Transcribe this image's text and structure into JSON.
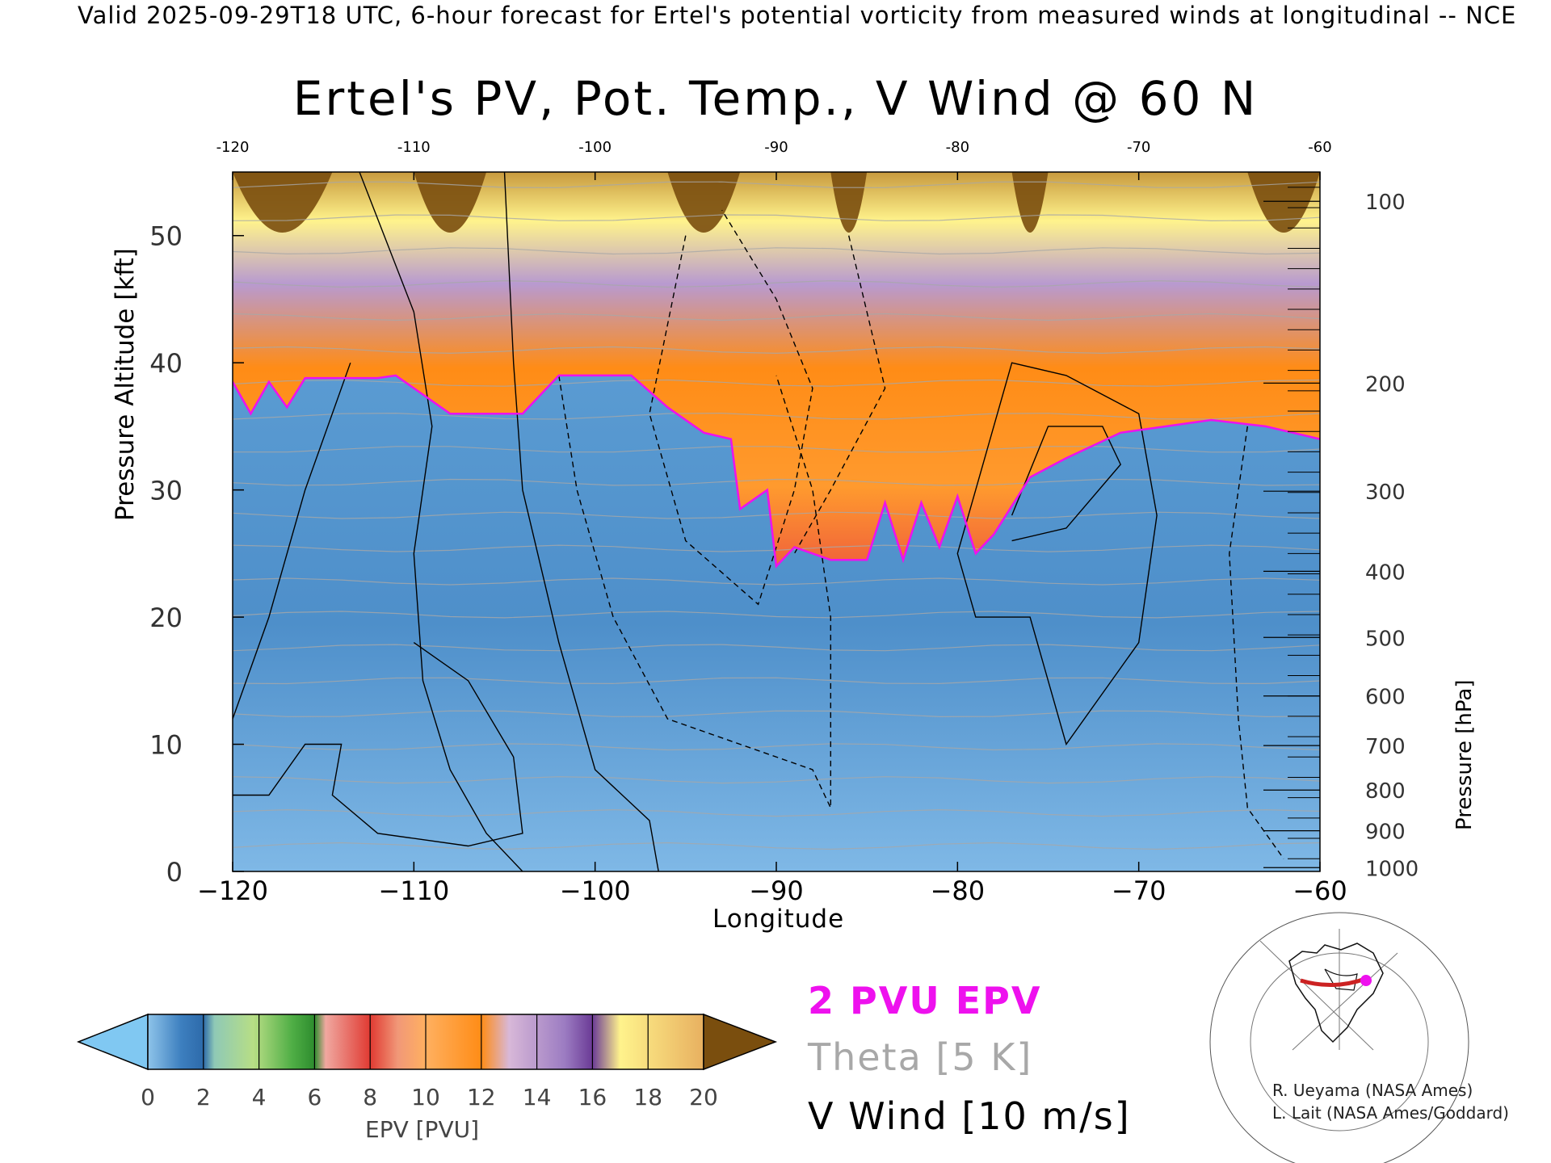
{
  "header": {
    "valid_line": "Valid 2025-09-29T18 UTC, 6-hour forecast for Ertel's potential vorticity from measured winds at longitudinal -- NCE"
  },
  "chart_data": {
    "type": "heatmap",
    "title": "Ertel's PV, Pot. Temp., V Wind @ 60 N",
    "xlabel": "Longitude",
    "ylabel_left": "Pressure Altitude [kft]",
    "ylabel_right": "Pressure [hPa]",
    "xlim": [
      -120,
      -60
    ],
    "ylim_kft": [
      0,
      55
    ],
    "x_ticks": [
      "-120",
      "-110",
      "-100",
      "-90",
      "-80",
      "-70",
      "-60"
    ],
    "top_ticks": [
      "-120",
      "-110",
      "-100",
      "-90",
      "-80",
      "-70",
      "-60"
    ],
    "y_ticks": [
      {
        "value": 0,
        "label": "0"
      },
      {
        "value": 10,
        "label": "10"
      },
      {
        "value": 20,
        "label": "20"
      },
      {
        "value": 30,
        "label": "30"
      },
      {
        "value": 40,
        "label": "40"
      },
      {
        "value": 50,
        "label": "50"
      }
    ],
    "pressure_ticks": [
      {
        "kft": 52.7,
        "label": "100"
      },
      {
        "kft": 38.4,
        "label": "200"
      },
      {
        "kft": 29.9,
        "label": "300"
      },
      {
        "kft": 23.6,
        "label": "400"
      },
      {
        "kft": 18.4,
        "label": "500"
      },
      {
        "kft": 13.8,
        "label": "600"
      },
      {
        "kft": 9.9,
        "label": "700"
      },
      {
        "kft": 6.4,
        "label": "800"
      },
      {
        "kft": 3.2,
        "label": "900"
      },
      {
        "kft": 0.3,
        "label": "1000"
      }
    ],
    "pv2_tropopause_kft": [
      {
        "lon": -120,
        "kft": 38.5
      },
      {
        "lon": -119,
        "kft": 36
      },
      {
        "lon": -118,
        "kft": 38.5
      },
      {
        "lon": -117,
        "kft": 36.5
      },
      {
        "lon": -116,
        "kft": 38.8
      },
      {
        "lon": -112,
        "kft": 38.8
      },
      {
        "lon": -111,
        "kft": 39
      },
      {
        "lon": -108,
        "kft": 36
      },
      {
        "lon": -104,
        "kft": 36
      },
      {
        "lon": -102,
        "kft": 39
      },
      {
        "lon": -98,
        "kft": 39
      },
      {
        "lon": -96,
        "kft": 36.5
      },
      {
        "lon": -94,
        "kft": 34.5
      },
      {
        "lon": -92.5,
        "kft": 34
      },
      {
        "lon": -92,
        "kft": 28.5
      },
      {
        "lon": -90.5,
        "kft": 30
      },
      {
        "lon": -90,
        "kft": 24
      },
      {
        "lon": -89,
        "kft": 25.5
      },
      {
        "lon": -87,
        "kft": 24.5
      },
      {
        "lon": -85,
        "kft": 24.5
      },
      {
        "lon": -84,
        "kft": 29
      },
      {
        "lon": -83,
        "kft": 24.5
      },
      {
        "lon": -82,
        "kft": 29
      },
      {
        "lon": -81,
        "kft": 25.5
      },
      {
        "lon": -80,
        "kft": 29.5
      },
      {
        "lon": -79,
        "kft": 25
      },
      {
        "lon": -78,
        "kft": 26.5
      },
      {
        "lon": -76,
        "kft": 31
      },
      {
        "lon": -74,
        "kft": 32.5
      },
      {
        "lon": -71,
        "kft": 34.5
      },
      {
        "lon": -66,
        "kft": 35.5
      },
      {
        "lon": -63,
        "kft": 35
      },
      {
        "lon": -60,
        "kft": 34
      }
    ],
    "colorbar": {
      "label": "EPV [PVU]",
      "ticks": [
        "0",
        "2",
        "4",
        "6",
        "8",
        "10",
        "12",
        "14",
        "16",
        "18",
        "20"
      ],
      "under_color": "#80c8f2",
      "over_color": "#7a4e0e"
    },
    "legend": {
      "pvu": "2 PVU EPV",
      "theta": "Theta [5 K]",
      "vwind": "V Wind [10 m/s]"
    }
  },
  "credits": {
    "line1": "R. Ueyama (NASA Ames)",
    "line2": "L. Lait (NASA Ames/Goddard)"
  },
  "colors": {
    "pv2_line": "#ee11ee",
    "theta_lines": "#a8a8a8",
    "vwind_lines": "#000000",
    "troposphere": "#5b9bd0"
  }
}
